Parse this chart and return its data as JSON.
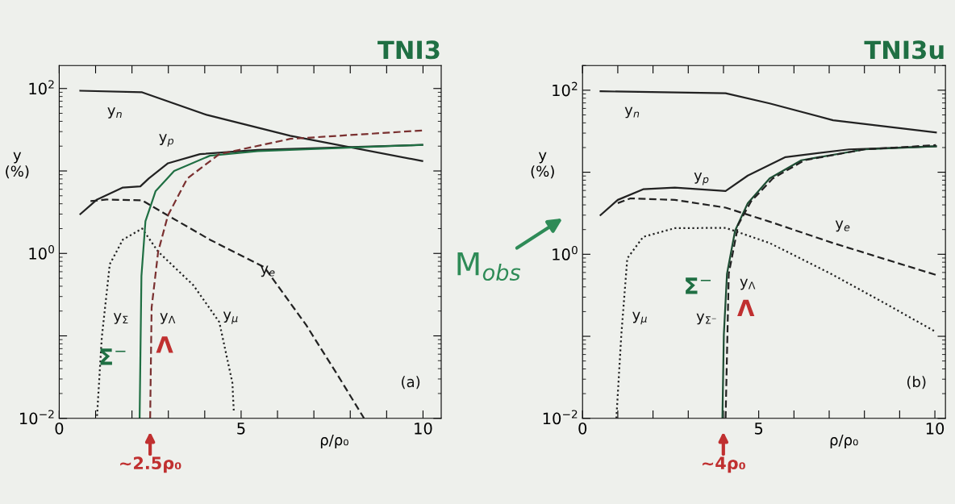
{
  "chart_data": [
    {
      "type": "line",
      "title": "TNI3",
      "xlabel": "ρ/ρ₀",
      "ylabel": "y\n(%)",
      "log": "y",
      "grid": false,
      "xlim": [
        0,
        10.5
      ],
      "ylim": [
        0.01,
        190
      ],
      "xticks": [
        0,
        {
          "value": 1,
          "label": null
        },
        {
          "value": 2,
          "label": null
        },
        {
          "value": 3,
          "label": null
        },
        {
          "value": 4,
          "label": null
        },
        5,
        {
          "value": 6,
          "label": null
        },
        {
          "value": 7,
          "label": null
        },
        {
          "value": 8,
          "label": null
        },
        {
          "value": 9,
          "label": null
        },
        10
      ],
      "yticks": [
        {
          "value": 0.01,
          "label": "10$^{−2}$"
        },
        {
          "value": 0.1,
          "label": null
        },
        {
          "value": 1,
          "label": "10$^{0}$"
        },
        {
          "value": 10,
          "label": null
        },
        {
          "value": 100,
          "label": "10$^{2}$"
        }
      ],
      "series": [
        {
          "color": "#222222",
          "line_style": "solid",
          "x": [
            0.58,
            2.28,
            4.05,
            6.35,
            9.98
          ],
          "values": [
            94,
            90,
            48,
            26.7,
            13.2
          ]
        },
        {
          "color": "#222222",
          "line_style": "solid",
          "x": [
            0.58,
            1.04,
            1.75,
            2.23,
            2.46,
            2.99,
            3.87,
            5.46,
            9.98
          ],
          "values": [
            3.0,
            4.5,
            6.3,
            6.5,
            8.1,
            12.4,
            16,
            18,
            20.7
          ]
        },
        {
          "color": "#222222",
          "line_style": "dashed",
          "x": [
            0.86,
            1.3,
            2.28,
            2.81,
            4.14,
            5.64,
            6.79,
            7.68,
            8.38
          ],
          "values": [
            4.3,
            4.5,
            4.4,
            3.2,
            1.47,
            0.68,
            0.135,
            0.032,
            0.01
          ]
        },
        {
          "color": "#222222",
          "line_style": "dotted",
          "x": [
            1.04,
            1.17,
            1.39,
            1.75,
            2.28,
            2.72,
            3.69,
            4.4,
            4.76,
            4.8
          ],
          "values": [
            0.0107,
            0.095,
            0.74,
            1.47,
            2.0,
            1.05,
            0.41,
            0.147,
            0.027,
            0.0118
          ]
        },
        {
          "color": "#1f6f43",
          "line_style": "solid",
          "x": [
            2.21,
            2.26,
            2.37,
            2.65,
            3.16,
            4.14,
            5.46,
            9.98
          ],
          "values": [
            0.01,
            0.53,
            2.45,
            5.7,
            10,
            15.3,
            17.4,
            20.7
          ]
        },
        {
          "color": "#7a3030",
          "line_style": "dashed",
          "x": [
            2.5,
            2.54,
            2.72,
            2.99,
            3.52,
            4.4,
            6.35,
            9.98
          ],
          "values": [
            0.01,
            0.22,
            1.05,
            2.9,
            8.1,
            16,
            24.5,
            31
          ]
        }
      ],
      "annotations": [
        "y$_{n}$",
        "y$_{p}$",
        "y$_{e}$",
        "y$_{Σ}$",
        "y$_{Λ}$",
        "y$_{μ}$",
        "Σ$^{−}$",
        "Λ",
        "~2.5ρ₀",
        "(a)"
      ]
    },
    {
      "type": "line",
      "title": "TNI3u",
      "xlabel": "ρ/ρ₀",
      "ylabel": "y\n(%)",
      "log": "y",
      "grid": false,
      "xlim": [
        0,
        10.3
      ],
      "ylim": [
        0.01,
        200
      ],
      "xticks": [
        0,
        {
          "value": 1,
          "label": null
        },
        {
          "value": 2,
          "label": null
        },
        {
          "value": 3,
          "label": null
        },
        {
          "value": 4,
          "label": null
        },
        5,
        {
          "value": 6,
          "label": null
        },
        {
          "value": 7,
          "label": null
        },
        {
          "value": 8,
          "label": null
        },
        {
          "value": 9,
          "label": null
        },
        10
      ],
      "yticks": [
        {
          "value": 0.01,
          "label": "10$^{−2}$"
        },
        {
          "value": 0.1,
          "label": null
        },
        {
          "value": 1,
          "label": "10$^{0}$"
        },
        {
          "value": 10,
          "label": null
        },
        {
          "value": 100,
          "label": "10$^{2}$"
        }
      ],
      "series": [
        {
          "color": "#222222",
          "line_style": "solid",
          "x": [
            0.51,
            4.06,
            5.31,
            7.11,
            10.03
          ],
          "values": [
            97,
            92,
            69,
            43,
            30.5
          ]
        },
        {
          "color": "#222222",
          "line_style": "solid",
          "x": [
            0.51,
            1.0,
            1.72,
            2.62,
            4.06,
            4.69,
            5.76,
            7.56,
            10.03
          ],
          "values": [
            3.0,
            4.6,
            6.2,
            6.5,
            5.9,
            9.1,
            15.3,
            19,
            20.7
          ]
        },
        {
          "color": "#222222",
          "line_style": "dashed",
          "x": [
            1.0,
            1.36,
            2.62,
            4.06,
            5.31,
            7.11,
            10.03
          ],
          "values": [
            4.2,
            4.8,
            4.6,
            3.7,
            2.5,
            1.37,
            0.56
          ]
        },
        {
          "color": "#222222",
          "line_style": "dotted",
          "x": [
            0.96,
            1.1,
            1.27,
            1.72,
            2.62,
            4.06,
            5.31,
            7.11,
            8.46,
            10.03
          ],
          "values": [
            0.01,
            0.104,
            0.89,
            1.63,
            2.08,
            2.1,
            1.37,
            0.56,
            0.27,
            0.113
          ]
        },
        {
          "color": "#1d4d33",
          "line_style": "solid",
          "x": [
            3.97,
            4.01,
            4.1,
            4.33,
            4.69,
            5.31,
            6.21,
            8.0,
            10.03
          ],
          "values": [
            0.01,
            0.104,
            0.58,
            1.94,
            4.2,
            8.4,
            14,
            19,
            20.7
          ]
        },
        {
          "color": "#222222",
          "line_style": "dashed",
          "x": [
            4.06,
            4.15,
            4.42,
            4.78,
            5.4,
            6.3,
            8.0,
            10.03
          ],
          "values": [
            0.01,
            0.58,
            2.3,
            4.4,
            8.4,
            14,
            19,
            21.4
          ]
        }
      ],
      "annotations": [
        "y$_{n}$",
        "y$_{p}$",
        "y$_{e}$",
        "y$_{μ}$",
        "y$_{Σ⁻}$",
        "y$_{Λ}$",
        "Σ$^{−}$",
        "Λ",
        "~4ρ₀",
        "(b)",
        "M$_{obs}$"
      ]
    }
  ]
}
